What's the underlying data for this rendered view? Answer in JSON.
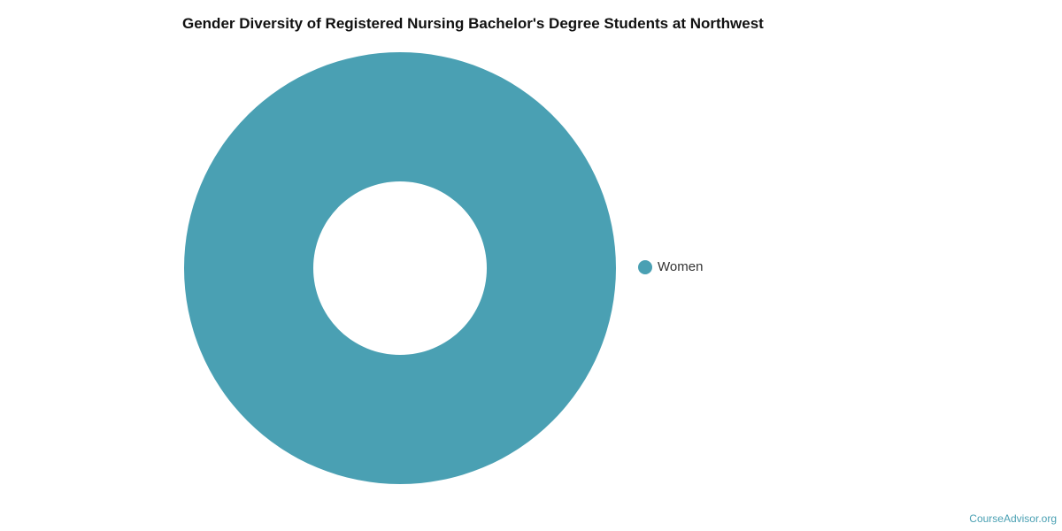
{
  "chart_data": {
    "type": "pie",
    "donut": true,
    "title": "Gender Diversity of Registered Nursing Bachelor's Degree Students at Northwest",
    "categories": [
      "Women"
    ],
    "values": [
      100
    ],
    "colors": [
      "#4aa0b3"
    ],
    "legend_position": "right"
  },
  "watermark": "CourseAdvisor.org"
}
